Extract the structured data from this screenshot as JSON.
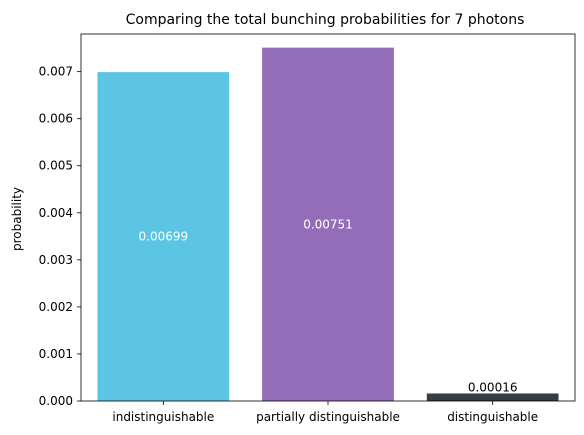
{
  "chart_data": {
    "type": "bar",
    "title": "Comparing the total bunching probabilities for 7 photons",
    "xlabel": "",
    "ylabel": "probability",
    "categories": [
      "indistinguishable",
      "partially distinguishable",
      "distinguishable"
    ],
    "values": [
      0.00699,
      0.00751,
      0.00016
    ],
    "value_labels": [
      "0.00699",
      "0.00751",
      "0.00016"
    ],
    "label_positions": [
      "center",
      "center",
      "top"
    ],
    "colors": [
      "#5bc5e3",
      "#946db9",
      "#363d45"
    ],
    "label_colors": [
      "#ffffff",
      "#ffffff",
      "#000000"
    ],
    "ylim": [
      0,
      0.0078
    ],
    "yticks": [
      0,
      0.001,
      0.002,
      0.003,
      0.004,
      0.005,
      0.006,
      0.007
    ],
    "ytick_labels": [
      "0.000",
      "0.001",
      "0.002",
      "0.003",
      "0.004",
      "0.005",
      "0.006",
      "0.007"
    ],
    "grid": false,
    "legend": "none"
  }
}
